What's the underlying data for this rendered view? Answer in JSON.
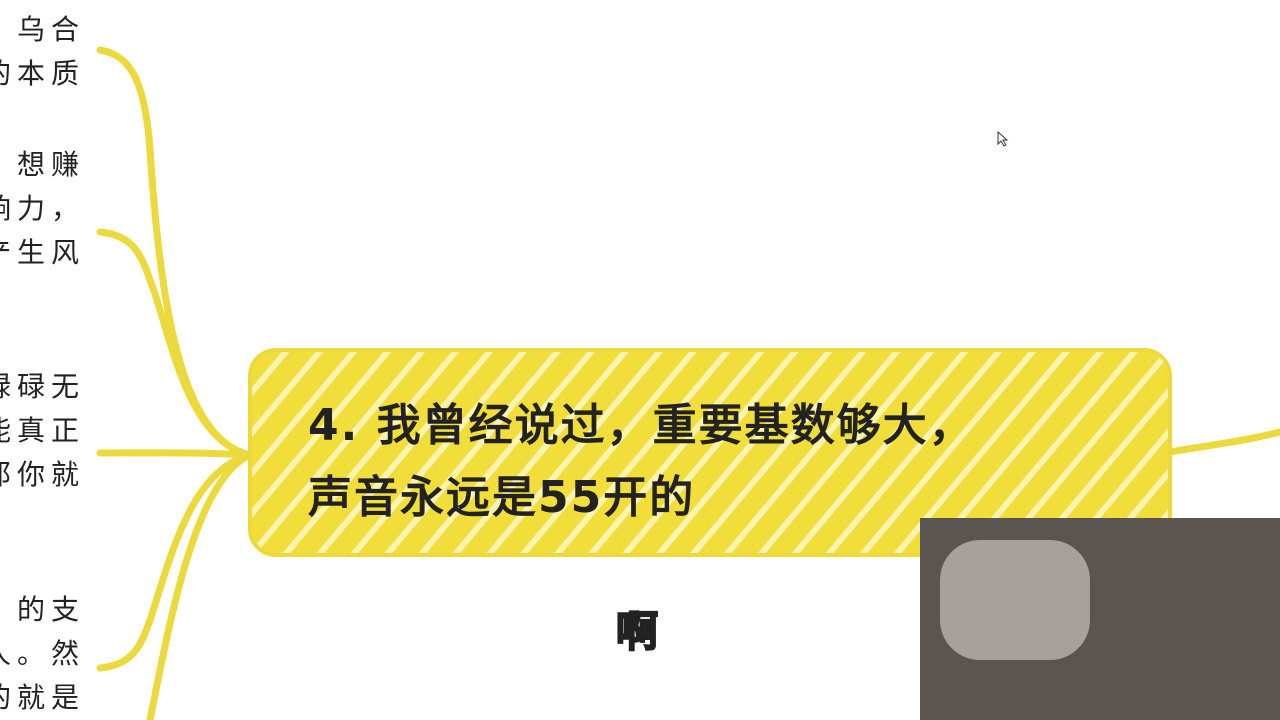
{
  "branches": [
    {
      "lines": [
        "乌合",
        "的本质"
      ]
    },
    {
      "lines": [
        "想赚",
        "响力，",
        "产生风"
      ]
    },
    {
      "lines": [
        "碌碌无",
        "能真正",
        "那你就"
      ]
    },
    {
      "lines": [
        "的支",
        "人。然",
        "的就是"
      ]
    }
  ],
  "central_node": {
    "lines": [
      "4. 我曾经说过，重要基数够大，",
      "声音永远是55开的"
    ]
  },
  "subtitle": "啊"
}
